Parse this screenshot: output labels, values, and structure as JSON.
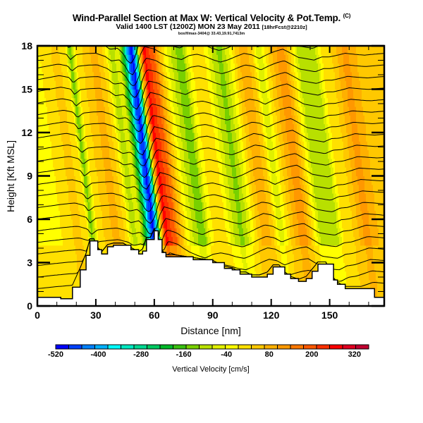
{
  "header": {
    "title": "Wind-Parallel Section at Max W: Vertical Velocity & Pot.Temp.",
    "copyright": "(C)",
    "valid_line": "Valid 1400 LST (1200Z) MON 23 May 2011",
    "forecast_tag": "[18hrFcst@2210z]",
    "sub_line": "box/f/max-3404@ 33.43,19.91,7413m"
  },
  "chart_data": {
    "type": "heatmap",
    "title": "Wind-Parallel Section at Max W: Vertical Velocity & Pot.Temp.",
    "xlabel": "Distance [nm]",
    "ylabel": "Height [Kft MSL]",
    "xlim": [
      0,
      178
    ],
    "ylim": [
      0,
      18
    ],
    "xticks": [
      "0",
      "30",
      "60",
      "90",
      "120",
      "150"
    ],
    "xtick_values": [
      0,
      30,
      60,
      90,
      120,
      150
    ],
    "yticks": [
      "0",
      "3",
      "6",
      "9",
      "12",
      "15",
      "18"
    ],
    "ytick_values": [
      0,
      3,
      6,
      9,
      12,
      15,
      18
    ],
    "colorbar": {
      "label": "Vertical Velocity [cm/s]",
      "tick_labels": [
        "-520",
        "-400",
        "-280",
        "-160",
        "-40",
        "80",
        "200",
        "320"
      ],
      "tick_values": [
        -520,
        -400,
        -280,
        -160,
        -40,
        80,
        200,
        320
      ],
      "range": [
        -520,
        360
      ],
      "step": 40,
      "colors": [
        "#0000ff",
        "#0040ff",
        "#0080ff",
        "#00b0ff",
        "#00ffff",
        "#00e8c0",
        "#00d890",
        "#00c860",
        "#00b828",
        "#38c010",
        "#78d000",
        "#b8e000",
        "#e0f000",
        "#ffff00",
        "#ffe000",
        "#ffc800",
        "#ffb000",
        "#ff9800",
        "#ff7800",
        "#ff5800",
        "#ff3000",
        "#ff0000",
        "#e00020",
        "#c00030"
      ]
    },
    "velocity_profile": {
      "description_units": "cm/s by distance (nm)",
      "x": [
        0,
        8,
        15,
        20,
        25,
        27,
        30,
        35,
        40,
        45,
        48,
        52,
        55,
        57,
        59,
        61,
        63,
        65,
        67,
        70,
        73,
        76,
        80,
        84,
        88,
        92,
        96,
        100,
        104,
        108,
        112,
        116,
        120,
        124,
        128,
        132,
        136,
        140,
        144,
        148,
        152,
        156,
        160,
        164,
        168,
        172,
        178
      ],
      "w": [
        0,
        20,
        60,
        100,
        40,
        -120,
        40,
        100,
        140,
        60,
        -60,
        -20,
        -200,
        -420,
        -500,
        -300,
        120,
        340,
        300,
        240,
        120,
        20,
        -60,
        -120,
        20,
        80,
        40,
        -40,
        -100,
        -20,
        80,
        160,
        100,
        -40,
        60,
        140,
        200,
        80,
        -40,
        -60,
        -80,
        40,
        60,
        120,
        180,
        140,
        80
      ]
    },
    "terrain_kft": {
      "x": [
        0,
        4,
        8,
        12,
        18,
        22,
        25,
        27,
        29,
        31,
        33,
        36,
        39,
        44,
        48,
        52,
        54,
        56,
        58,
        60,
        62,
        64,
        66,
        70,
        80,
        90,
        96,
        100,
        104,
        107,
        110,
        114,
        118,
        121,
        124,
        127,
        130,
        134,
        138,
        141,
        144,
        148,
        152,
        154,
        158,
        163,
        168,
        173,
        178
      ],
      "h": [
        0.6,
        0.6,
        0.6,
        0.5,
        1.3,
        2.5,
        3.5,
        4.5,
        4.5,
        3.9,
        3.6,
        4.1,
        4.2,
        4.2,
        3.9,
        3.6,
        3.8,
        4.6,
        4.6,
        5.2,
        4.6,
        3.7,
        3.4,
        3.4,
        3.2,
        3.0,
        2.6,
        2.5,
        2.2,
        2.2,
        2.0,
        2.0,
        2.2,
        2.7,
        2.7,
        2.2,
        1.9,
        1.7,
        1.9,
        2.4,
        2.9,
        2.9,
        1.8,
        1.5,
        1.2,
        1.2,
        1.2,
        0.6,
        0.5
      ]
    },
    "theta_contours": {
      "count": 22,
      "base_kft": 1.2,
      "spacing_kft": 0.8
    }
  }
}
